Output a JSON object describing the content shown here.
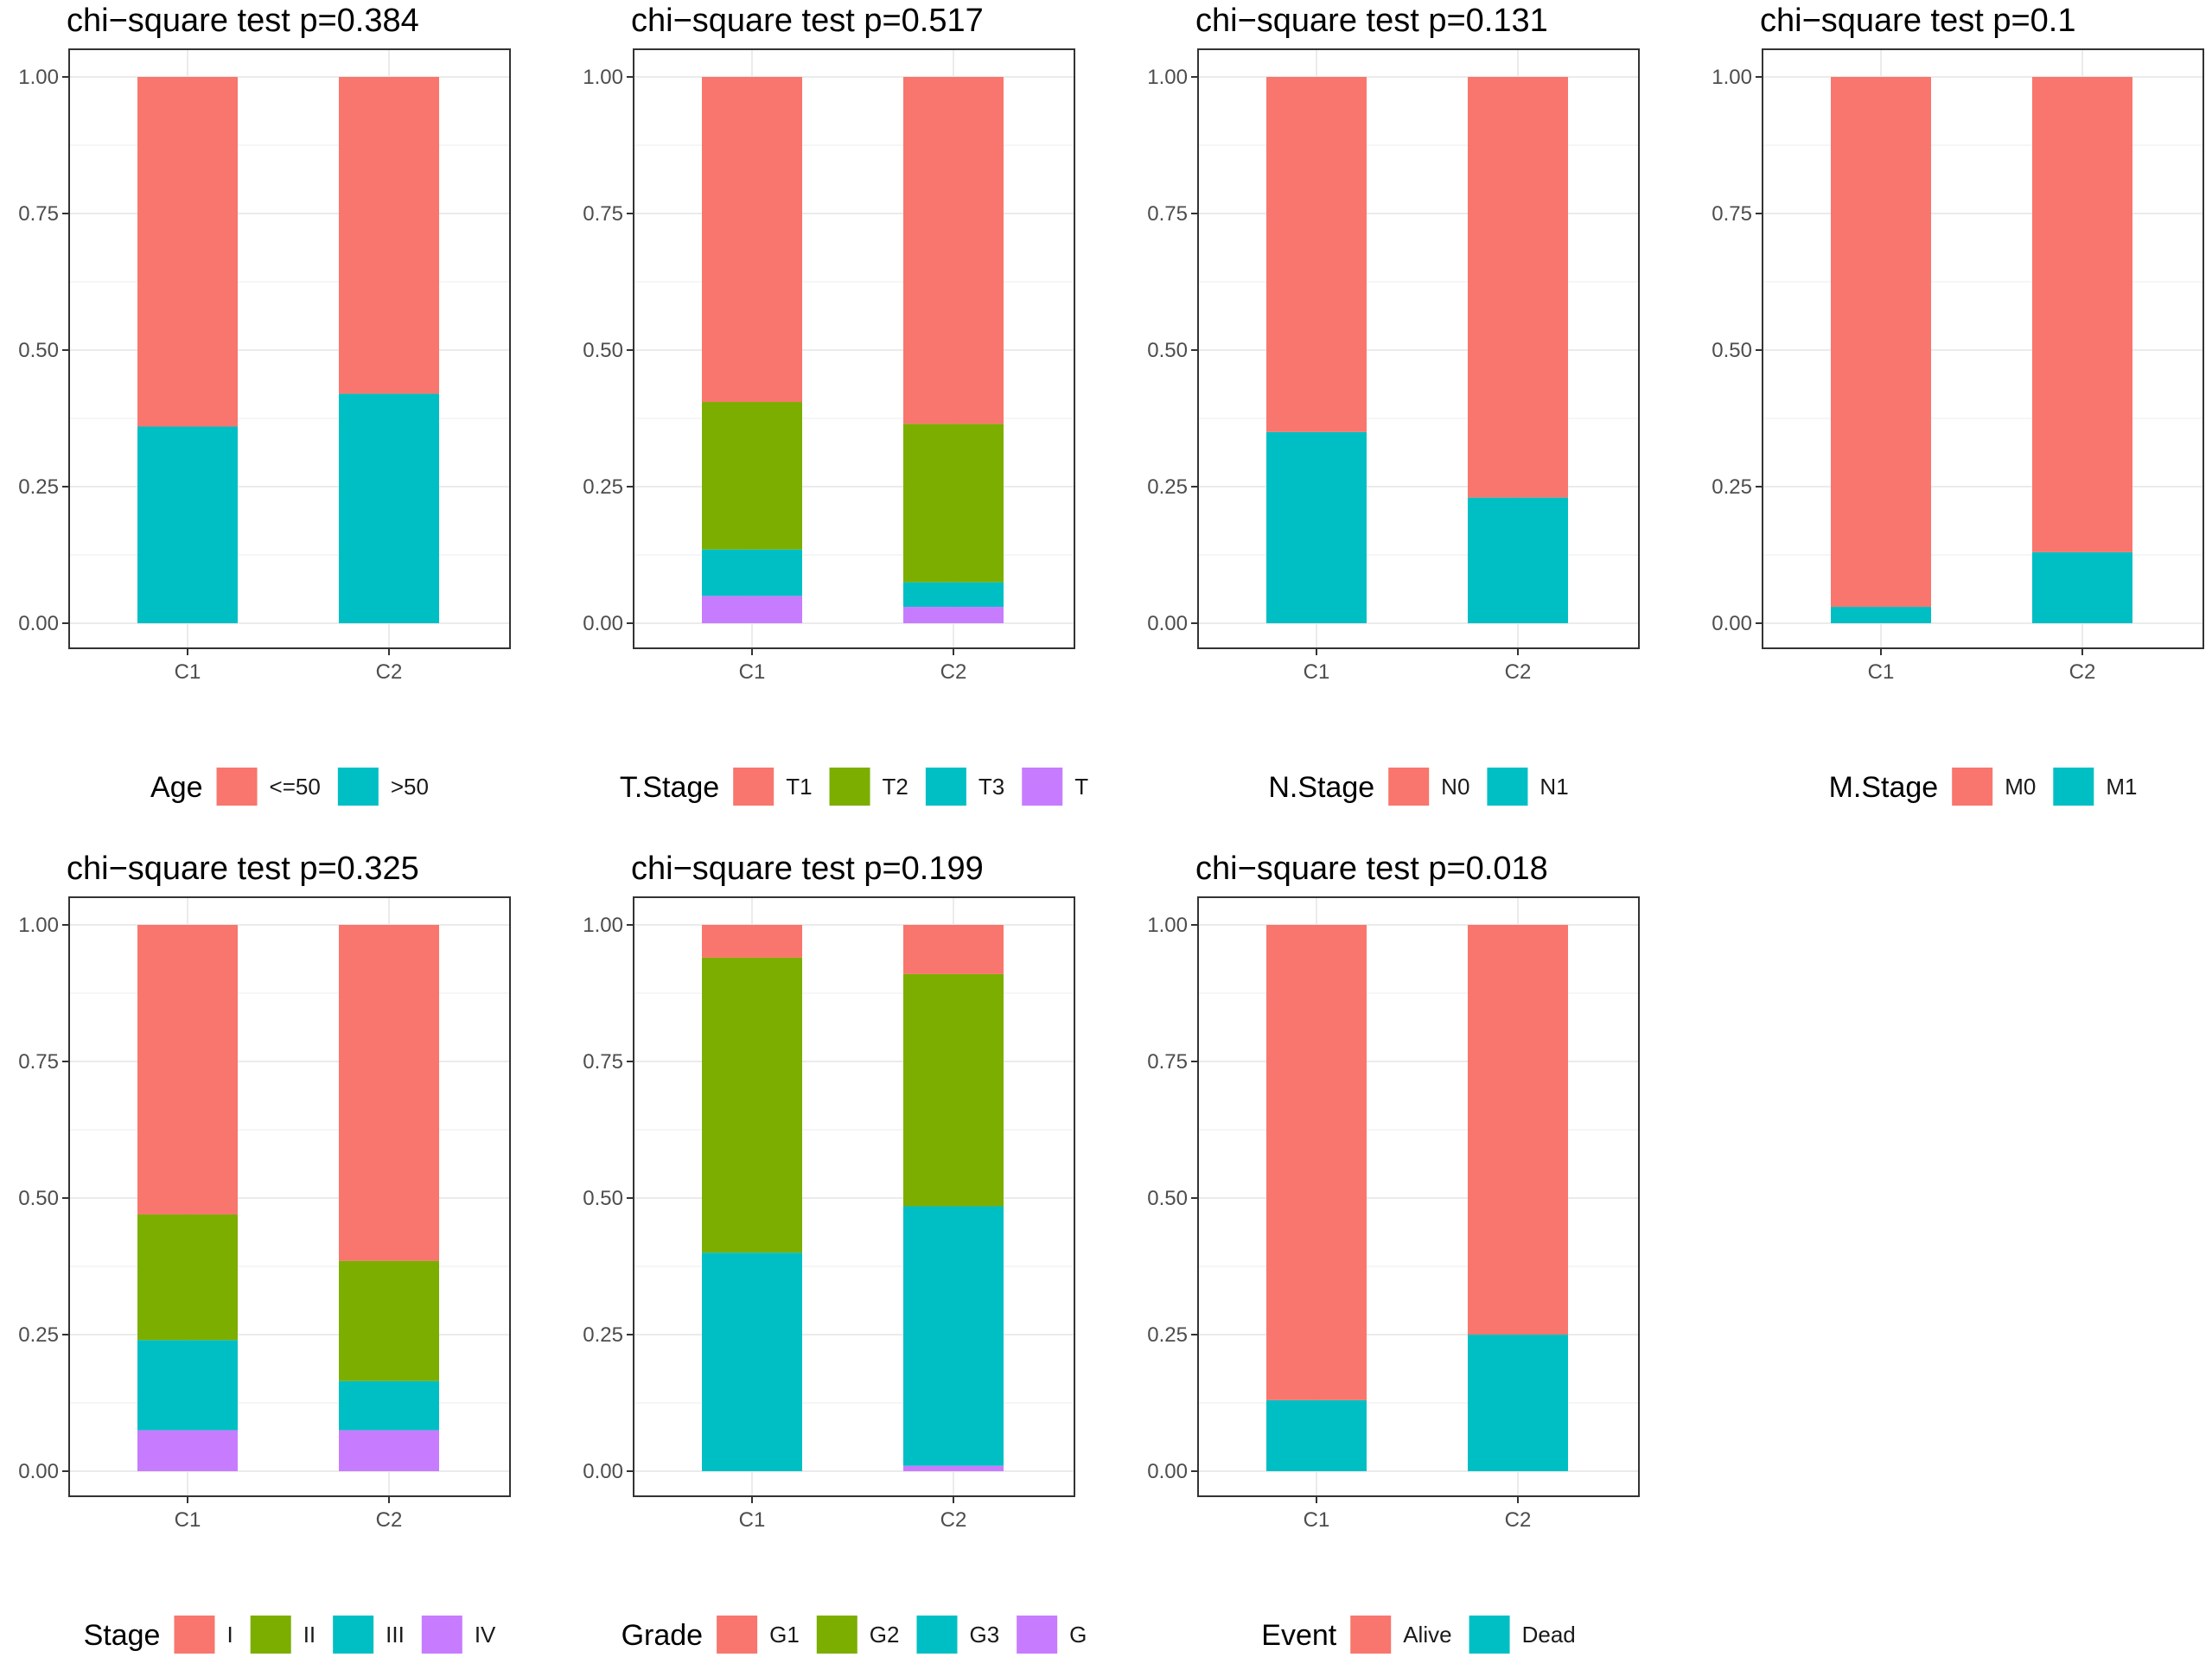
{
  "figure": {
    "panels": [
      {
        "title": "chi−square test p=0.384",
        "legend_title": "Age",
        "legend_labels": [
          "<=50",
          ">50"
        ]
      },
      {
        "title": "chi−square test p=0.517",
        "legend_title": "T.Stage",
        "legend_labels": [
          "T1",
          "T2",
          "T3",
          "T"
        ]
      },
      {
        "title": "chi−square test p=0.131",
        "legend_title": "N.Stage",
        "legend_labels": [
          "N0",
          "N1"
        ]
      },
      {
        "title": "chi−square test p=0.1",
        "legend_title": "M.Stage",
        "legend_labels": [
          "M0",
          "M1"
        ]
      },
      {
        "title": "chi−square test p=0.325",
        "legend_title": "Stage",
        "legend_labels": [
          "I",
          "II",
          "III",
          "IV"
        ]
      },
      {
        "title": "chi−square test p=0.199",
        "legend_title": "Grade",
        "legend_labels": [
          "G1",
          "G2",
          "G3",
          "G"
        ]
      },
      {
        "title": "chi−square test p=0.018",
        "legend_title": "Event",
        "legend_labels": [
          "Alive",
          "Dead"
        ]
      }
    ]
  },
  "colors": {
    "red": "#F8766D",
    "green": "#7CAE00",
    "cyan": "#00BFC4",
    "purple": "#C77CFF",
    "grid": "#ebebeb",
    "panel_border": "#333333"
  },
  "chart_data": [
    {
      "type": "bar",
      "stacked": true,
      "title": "chi−square test p=0.384",
      "categories": [
        "C1",
        "C2"
      ],
      "yticks": [
        "0.00",
        "0.25",
        "0.50",
        "0.75",
        "1.00"
      ],
      "ylim": [
        0,
        1
      ],
      "legend_title": "Age",
      "series": [
        {
          "name": "<=50",
          "color": "#F8766D",
          "values": [
            0.64,
            0.58
          ]
        },
        {
          "name": ">50",
          "color": "#00BFC4",
          "values": [
            0.36,
            0.42
          ]
        }
      ]
    },
    {
      "type": "bar",
      "stacked": true,
      "title": "chi−square test p=0.517",
      "categories": [
        "C1",
        "C2"
      ],
      "yticks": [
        "0.00",
        "0.25",
        "0.50",
        "0.75",
        "1.00"
      ],
      "ylim": [
        0,
        1
      ],
      "legend_title": "T.Stage",
      "series": [
        {
          "name": "T1",
          "color": "#F8766D",
          "values": [
            0.595,
            0.635
          ]
        },
        {
          "name": "T2",
          "color": "#7CAE00",
          "values": [
            0.27,
            0.29
          ]
        },
        {
          "name": "T3",
          "color": "#00BFC4",
          "values": [
            0.085,
            0.045
          ]
        },
        {
          "name": "T",
          "color": "#C77CFF",
          "values": [
            0.05,
            0.03
          ]
        }
      ]
    },
    {
      "type": "bar",
      "stacked": true,
      "title": "chi−square test p=0.131",
      "categories": [
        "C1",
        "C2"
      ],
      "yticks": [
        "0.00",
        "0.25",
        "0.50",
        "0.75",
        "1.00"
      ],
      "ylim": [
        0,
        1
      ],
      "legend_title": "N.Stage",
      "series": [
        {
          "name": "N0",
          "color": "#F8766D",
          "values": [
            0.65,
            0.77
          ]
        },
        {
          "name": "N1",
          "color": "#00BFC4",
          "values": [
            0.35,
            0.23
          ]
        }
      ]
    },
    {
      "type": "bar",
      "stacked": true,
      "title": "chi−square test p=0.1",
      "categories": [
        "C1",
        "C2"
      ],
      "yticks": [
        "0.00",
        "0.25",
        "0.50",
        "0.75",
        "1.00"
      ],
      "ylim": [
        0,
        1
      ],
      "legend_title": "M.Stage",
      "series": [
        {
          "name": "M0",
          "color": "#F8766D",
          "values": [
            0.97,
            0.87
          ]
        },
        {
          "name": "M1",
          "color": "#00BFC4",
          "values": [
            0.03,
            0.13
          ]
        }
      ]
    },
    {
      "type": "bar",
      "stacked": true,
      "title": "chi−square test p=0.325",
      "categories": [
        "C1",
        "C2"
      ],
      "yticks": [
        "0.00",
        "0.25",
        "0.50",
        "0.75",
        "1.00"
      ],
      "ylim": [
        0,
        1
      ],
      "legend_title": "Stage",
      "series": [
        {
          "name": "I",
          "color": "#F8766D",
          "values": [
            0.53,
            0.615
          ]
        },
        {
          "name": "II",
          "color": "#7CAE00",
          "values": [
            0.23,
            0.22
          ]
        },
        {
          "name": "III",
          "color": "#00BFC4",
          "values": [
            0.165,
            0.09
          ]
        },
        {
          "name": "IV",
          "color": "#C77CFF",
          "values": [
            0.075,
            0.075
          ]
        }
      ]
    },
    {
      "type": "bar",
      "stacked": true,
      "title": "chi−square test p=0.199",
      "categories": [
        "C1",
        "C2"
      ],
      "yticks": [
        "0.00",
        "0.25",
        "0.50",
        "0.75",
        "1.00"
      ],
      "ylim": [
        0,
        1
      ],
      "legend_title": "Grade",
      "series": [
        {
          "name": "G1",
          "color": "#F8766D",
          "values": [
            0.06,
            0.09
          ]
        },
        {
          "name": "G2",
          "color": "#7CAE00",
          "values": [
            0.54,
            0.425
          ]
        },
        {
          "name": "G3",
          "color": "#00BFC4",
          "values": [
            0.4,
            0.475
          ]
        },
        {
          "name": "G",
          "color": "#C77CFF",
          "values": [
            0.0,
            0.01
          ]
        }
      ]
    },
    {
      "type": "bar",
      "stacked": true,
      "title": "chi−square test p=0.018",
      "categories": [
        "C1",
        "C2"
      ],
      "yticks": [
        "0.00",
        "0.25",
        "0.50",
        "0.75",
        "1.00"
      ],
      "ylim": [
        0,
        1
      ],
      "legend_title": "Event",
      "series": [
        {
          "name": "Alive",
          "color": "#F8766D",
          "values": [
            0.87,
            0.75
          ]
        },
        {
          "name": "Dead",
          "color": "#00BFC4",
          "values": [
            0.13,
            0.25
          ]
        }
      ]
    }
  ]
}
